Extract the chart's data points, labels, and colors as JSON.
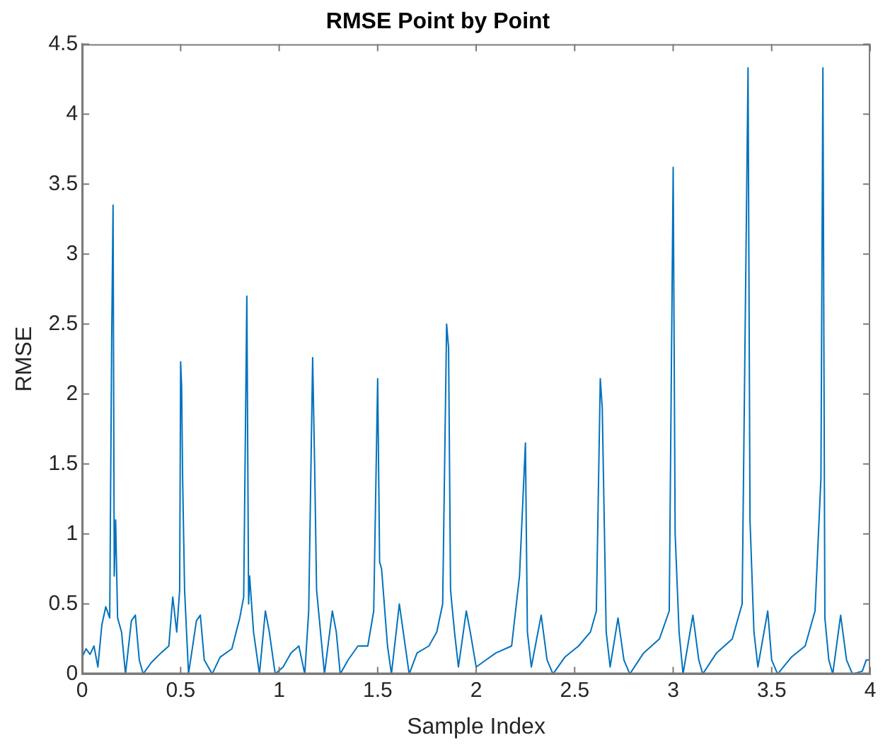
{
  "chart_data": {
    "type": "line",
    "title": "RMSE Point by Point",
    "xlabel": "Sample Index",
    "ylabel": "RMSE",
    "x": [
      0,
      0.02,
      0.04,
      0.06,
      0.08,
      0.1,
      0.12,
      0.14,
      0.15,
      0.157,
      0.163,
      0.17,
      0.18,
      0.2,
      0.22,
      0.25,
      0.27,
      0.29,
      0.31,
      0.35,
      0.4,
      0.44,
      0.46,
      0.48,
      0.495,
      0.5,
      0.505,
      0.51,
      0.52,
      0.54,
      0.58,
      0.6,
      0.62,
      0.66,
      0.7,
      0.76,
      0.8,
      0.82,
      0.836,
      0.845,
      0.85,
      0.87,
      0.9,
      0.93,
      0.95,
      0.98,
      1.02,
      1.06,
      1.1,
      1.13,
      1.15,
      1.17,
      1.18,
      1.19,
      1.21,
      1.23,
      1.27,
      1.29,
      1.31,
      1.35,
      1.4,
      1.45,
      1.48,
      1.5,
      1.51,
      1.52,
      1.55,
      1.57,
      1.61,
      1.63,
      1.66,
      1.7,
      1.76,
      1.8,
      1.83,
      1.85,
      1.86,
      1.87,
      1.89,
      1.91,
      1.95,
      1.97,
      2.0,
      2.05,
      2.1,
      2.18,
      2.22,
      2.25,
      2.26,
      2.28,
      2.33,
      2.36,
      2.39,
      2.45,
      2.52,
      2.58,
      2.61,
      2.63,
      2.64,
      2.66,
      2.68,
      2.72,
      2.75,
      2.78,
      2.85,
      2.93,
      2.98,
      3.0,
      3.01,
      3.03,
      3.05,
      3.1,
      3.13,
      3.15,
      3.22,
      3.3,
      3.35,
      3.38,
      3.39,
      3.41,
      3.43,
      3.48,
      3.5,
      3.53,
      3.6,
      3.67,
      3.72,
      3.75,
      3.76,
      3.77,
      3.79,
      3.81,
      3.85,
      3.88,
      3.91,
      3.96,
      3.98,
      4.0
    ],
    "series": [
      {
        "color": "#0072bd",
        "values": [
          0.12,
          0.18,
          0.14,
          0.2,
          0.05,
          0.35,
          0.48,
          0.4,
          2.4,
          3.35,
          0.7,
          1.1,
          0.4,
          0.3,
          0.0,
          0.38,
          0.42,
          0.1,
          0.0,
          0.08,
          0.15,
          0.2,
          0.55,
          0.3,
          0.6,
          2.23,
          2.05,
          1.4,
          0.6,
          0.0,
          0.38,
          0.42,
          0.1,
          0.0,
          0.12,
          0.18,
          0.4,
          0.55,
          2.7,
          0.5,
          0.7,
          0.3,
          0.0,
          0.45,
          0.3,
          0.0,
          0.05,
          0.15,
          0.2,
          0.0,
          0.45,
          2.26,
          1.5,
          0.6,
          0.3,
          0.0,
          0.45,
          0.3,
          0.0,
          0.1,
          0.2,
          0.2,
          0.45,
          2.11,
          0.8,
          0.75,
          0.2,
          0.0,
          0.5,
          0.3,
          0.0,
          0.15,
          0.2,
          0.3,
          0.5,
          2.5,
          2.33,
          0.6,
          0.3,
          0.05,
          0.45,
          0.3,
          0.05,
          0.1,
          0.15,
          0.2,
          0.7,
          1.65,
          0.3,
          0.05,
          0.42,
          0.1,
          0.0,
          0.12,
          0.2,
          0.3,
          0.45,
          2.11,
          1.9,
          0.3,
          0.05,
          0.4,
          0.1,
          0.0,
          0.15,
          0.25,
          0.45,
          3.62,
          1.0,
          0.3,
          0.0,
          0.42,
          0.1,
          0.0,
          0.15,
          0.25,
          0.5,
          4.33,
          1.1,
          0.3,
          0.05,
          0.45,
          0.1,
          0.0,
          0.12,
          0.2,
          0.45,
          1.4,
          4.33,
          0.4,
          0.1,
          0.0,
          0.42,
          0.1,
          0.0,
          0.02,
          0.1,
          0.1
        ]
      }
    ],
    "xlim": [
      0,
      4
    ],
    "xticks": [
      0,
      0.5,
      1,
      1.5,
      2,
      2.5,
      3,
      3.5,
      4
    ],
    "ylim": [
      0,
      4.5
    ],
    "yticks": [
      0,
      0.5,
      1,
      1.5,
      2,
      2.5,
      3,
      3.5,
      4,
      4.5
    ],
    "grid": false,
    "legend": false,
    "marker": "none",
    "line_style": "solid"
  }
}
